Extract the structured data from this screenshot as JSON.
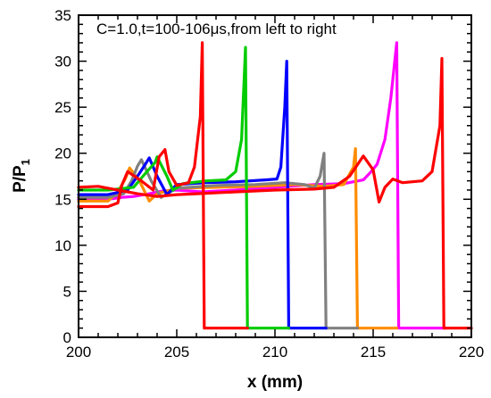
{
  "chart_data": {
    "type": "line",
    "title": "",
    "annotation": "C=1.0,t=100-106μs,from left to right",
    "xlabel": "x (mm)",
    "ylabel": "P/P",
    "ylabel_sub": "1",
    "xlim": [
      200,
      220
    ],
    "ylim": [
      0,
      35
    ],
    "xticks": [
      200,
      205,
      210,
      215,
      220
    ],
    "yticks": [
      0,
      5,
      10,
      15,
      20,
      25,
      30,
      35
    ],
    "grid": false,
    "series": [
      {
        "color": "#ff00ff",
        "points": [
          [
            200,
            15.0
          ],
          [
            201.5,
            15.0
          ],
          [
            202.2,
            15.2
          ],
          [
            202.8,
            15.3
          ],
          [
            203.6,
            15.6
          ],
          [
            204.3,
            15.9
          ],
          [
            205.0,
            16.0
          ],
          [
            206.3,
            15.8
          ],
          [
            208.0,
            16.0
          ],
          [
            210.0,
            16.3
          ],
          [
            212.0,
            16.6
          ],
          [
            213.5,
            16.7
          ],
          [
            214.5,
            17.1
          ],
          [
            214.9,
            18.0
          ],
          [
            215.2,
            18.8
          ],
          [
            215.6,
            21.5
          ],
          [
            215.9,
            26.0
          ],
          [
            216.2,
            32.0
          ],
          [
            216.3,
            1.0
          ],
          [
            218.7,
            1.0
          ]
        ]
      },
      {
        "color": "#ff8c00",
        "points": [
          [
            200,
            14.8
          ],
          [
            201.5,
            14.8
          ],
          [
            202.0,
            15.8
          ],
          [
            202.4,
            17.3
          ],
          [
            202.6,
            18.4
          ],
          [
            203.1,
            17.0
          ],
          [
            203.6,
            14.8
          ],
          [
            204.0,
            15.6
          ],
          [
            205.0,
            16.2
          ],
          [
            207.0,
            16.3
          ],
          [
            209.0,
            16.4
          ],
          [
            211.0,
            16.6
          ],
          [
            212.5,
            16.4
          ],
          [
            213.5,
            16.6
          ],
          [
            214.0,
            18.5
          ],
          [
            214.1,
            20.5
          ],
          [
            214.2,
            1.0
          ],
          [
            216.2,
            1.0
          ]
        ]
      },
      {
        "color": "#808080",
        "points": [
          [
            200,
            15.2
          ],
          [
            201.5,
            15.2
          ],
          [
            202.3,
            15.6
          ],
          [
            202.7,
            17.0
          ],
          [
            203.0,
            18.6
          ],
          [
            203.2,
            19.3
          ],
          [
            203.7,
            17.0
          ],
          [
            204.2,
            15.2
          ],
          [
            205.0,
            16.2
          ],
          [
            207.0,
            16.5
          ],
          [
            209.0,
            16.6
          ],
          [
            210.5,
            16.8
          ],
          [
            211.5,
            16.6
          ],
          [
            212.0,
            16.2
          ],
          [
            212.3,
            17.5
          ],
          [
            212.5,
            20.0
          ],
          [
            212.6,
            1.0
          ],
          [
            214.2,
            1.0
          ]
        ]
      },
      {
        "color": "#0000ff",
        "points": [
          [
            200,
            15.5
          ],
          [
            201.5,
            15.5
          ],
          [
            202.5,
            16.0
          ],
          [
            203.0,
            17.5
          ],
          [
            203.4,
            18.8
          ],
          [
            203.6,
            19.5
          ],
          [
            204.0,
            17.5
          ],
          [
            204.5,
            15.5
          ],
          [
            205.0,
            16.6
          ],
          [
            206.5,
            16.8
          ],
          [
            208.0,
            16.9
          ],
          [
            209.5,
            17.1
          ],
          [
            210.1,
            17.2
          ],
          [
            210.3,
            18.5
          ],
          [
            210.5,
            25.0
          ],
          [
            210.6,
            30.0
          ],
          [
            210.7,
            1.0
          ],
          [
            212.6,
            1.0
          ]
        ]
      },
      {
        "color": "#00cc00",
        "points": [
          [
            200,
            16.0
          ],
          [
            201.5,
            16.0
          ],
          [
            202.8,
            16.3
          ],
          [
            203.4,
            17.8
          ],
          [
            203.9,
            19.0
          ],
          [
            204.0,
            19.6
          ],
          [
            204.5,
            17.5
          ],
          [
            204.8,
            16.0
          ],
          [
            205.3,
            16.7
          ],
          [
            206.5,
            17.0
          ],
          [
            207.5,
            17.1
          ],
          [
            208.0,
            18.0
          ],
          [
            208.3,
            21.5
          ],
          [
            208.5,
            31.5
          ],
          [
            208.6,
            1.0
          ],
          [
            210.7,
            1.0
          ]
        ]
      },
      {
        "color": "#ff0000",
        "points": [
          [
            200,
            14.2
          ],
          [
            201.5,
            14.2
          ],
          [
            202.0,
            14.6
          ],
          [
            202.2,
            16.5
          ],
          [
            202.5,
            18.0
          ],
          [
            203.2,
            17.0
          ],
          [
            203.8,
            16.0
          ],
          [
            204.1,
            19.6
          ],
          [
            204.4,
            20.4
          ],
          [
            204.6,
            18.0
          ],
          [
            205.0,
            16.5
          ],
          [
            205.6,
            16.8
          ],
          [
            205.9,
            18.5
          ],
          [
            206.2,
            24.0
          ],
          [
            206.3,
            32.0
          ],
          [
            206.4,
            1.0
          ],
          [
            208.6,
            1.0
          ]
        ]
      },
      {
        "color": "#ff0000",
        "points": [
          [
            200,
            16.3
          ],
          [
            201.0,
            16.4
          ],
          [
            202.0,
            16.0
          ],
          [
            203.0,
            15.6
          ],
          [
            204.0,
            15.3
          ],
          [
            205.0,
            15.5
          ],
          [
            206.0,
            15.6
          ],
          [
            208.0,
            15.8
          ],
          [
            210.0,
            16.0
          ],
          [
            212.0,
            16.1
          ],
          [
            213.0,
            16.3
          ],
          [
            213.8,
            17.5
          ],
          [
            214.5,
            19.7
          ],
          [
            215.0,
            18.2
          ],
          [
            215.3,
            14.7
          ],
          [
            215.6,
            16.3
          ],
          [
            216.0,
            17.2
          ],
          [
            216.5,
            16.8
          ],
          [
            217.5,
            17.0
          ],
          [
            218.0,
            18.0
          ],
          [
            218.4,
            23.0
          ],
          [
            218.5,
            30.3
          ],
          [
            218.6,
            1.0
          ],
          [
            220,
            1.0
          ]
        ]
      }
    ]
  }
}
